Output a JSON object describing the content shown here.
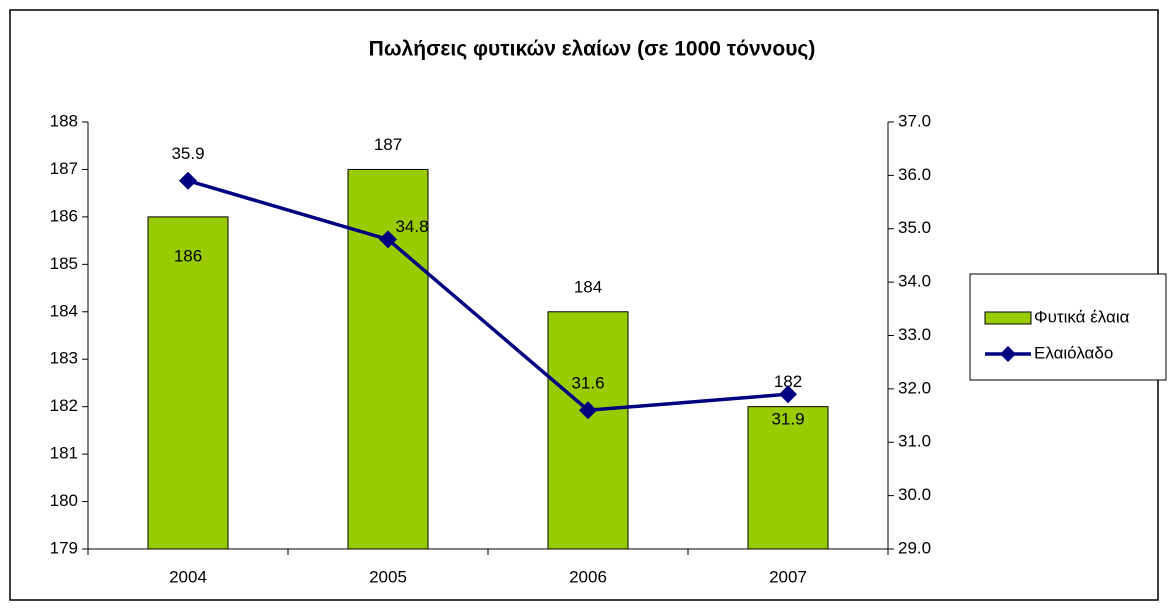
{
  "chart_data": {
    "type": "bar",
    "title": "Πωλήσεις φυτικών ελαίων (σε 1000 τόννους)",
    "categories": [
      "2004",
      "2005",
      "2006",
      "2007"
    ],
    "series": [
      {
        "name": "Φυτικά έλαια",
        "color": "#99cc00",
        "values": [
          186,
          187,
          184,
          182
        ]
      },
      {
        "name": "Ελαιόλαδο",
        "color": "#000080",
        "type": "line",
        "axis": "y2",
        "values": [
          35.9,
          34.8,
          31.6,
          31.9
        ]
      }
    ],
    "ylim": [
      179,
      188
    ],
    "yticks": [
      179,
      180,
      181,
      182,
      183,
      184,
      185,
      186,
      187,
      188
    ],
    "y2lim": [
      29,
      37
    ],
    "y2ticks": [
      {
        "value": 29,
        "label": "29.0"
      },
      {
        "value": 30,
        "label": "30.0"
      },
      {
        "value": 31,
        "label": "31.0"
      },
      {
        "value": 32,
        "label": "32.0"
      },
      {
        "value": 33,
        "label": "33.0"
      },
      {
        "value": 34,
        "label": "34.0"
      },
      {
        "value": 35,
        "label": "35.0"
      },
      {
        "value": 36,
        "label": "36.0"
      },
      {
        "value": 37,
        "label": "37.0"
      }
    ],
    "legend": "right"
  }
}
